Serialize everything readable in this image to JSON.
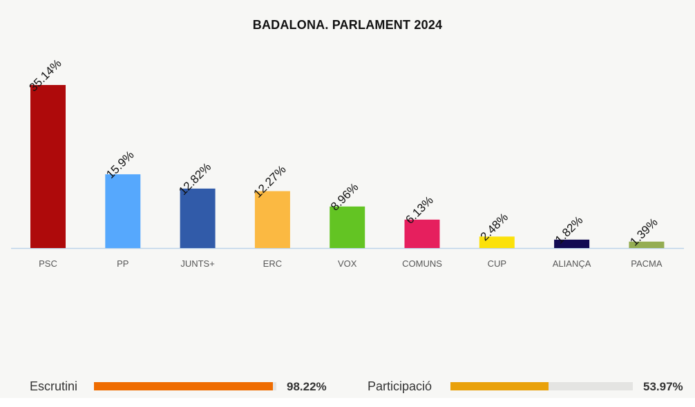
{
  "chart_data": {
    "type": "bar",
    "title": "BADALONA. PARLAMENT 2024",
    "categories": [
      "PSC",
      "PP",
      "JUNTS+",
      "ERC",
      "VOX",
      "COMUNS",
      "CUP",
      "ALIANÇA",
      "PACMA"
    ],
    "values": [
      35.14,
      15.9,
      12.82,
      12.27,
      8.96,
      6.13,
      2.48,
      1.82,
      1.39
    ],
    "value_labels": [
      "35.14%",
      "15.9%",
      "12.82%",
      "12.27%",
      "8.96%",
      "6.13%",
      "2.48%",
      "1.82%",
      "1.39%"
    ],
    "colors": [
      "#ae0a0b",
      "#56a8fd",
      "#315ba9",
      "#fbb942",
      "#63c423",
      "#e61f5e",
      "#fbe10a",
      "#120a52",
      "#94ad52"
    ],
    "ylim": [
      0,
      36
    ],
    "grid": false
  },
  "stats": {
    "escrutini": {
      "label": "Escrutini",
      "value": 98.22,
      "value_label": "98.22%",
      "color": "#ef6c00"
    },
    "participacio": {
      "label": "Participació",
      "value": 53.97,
      "value_label": "53.97%",
      "color": "#e9a10b"
    }
  }
}
